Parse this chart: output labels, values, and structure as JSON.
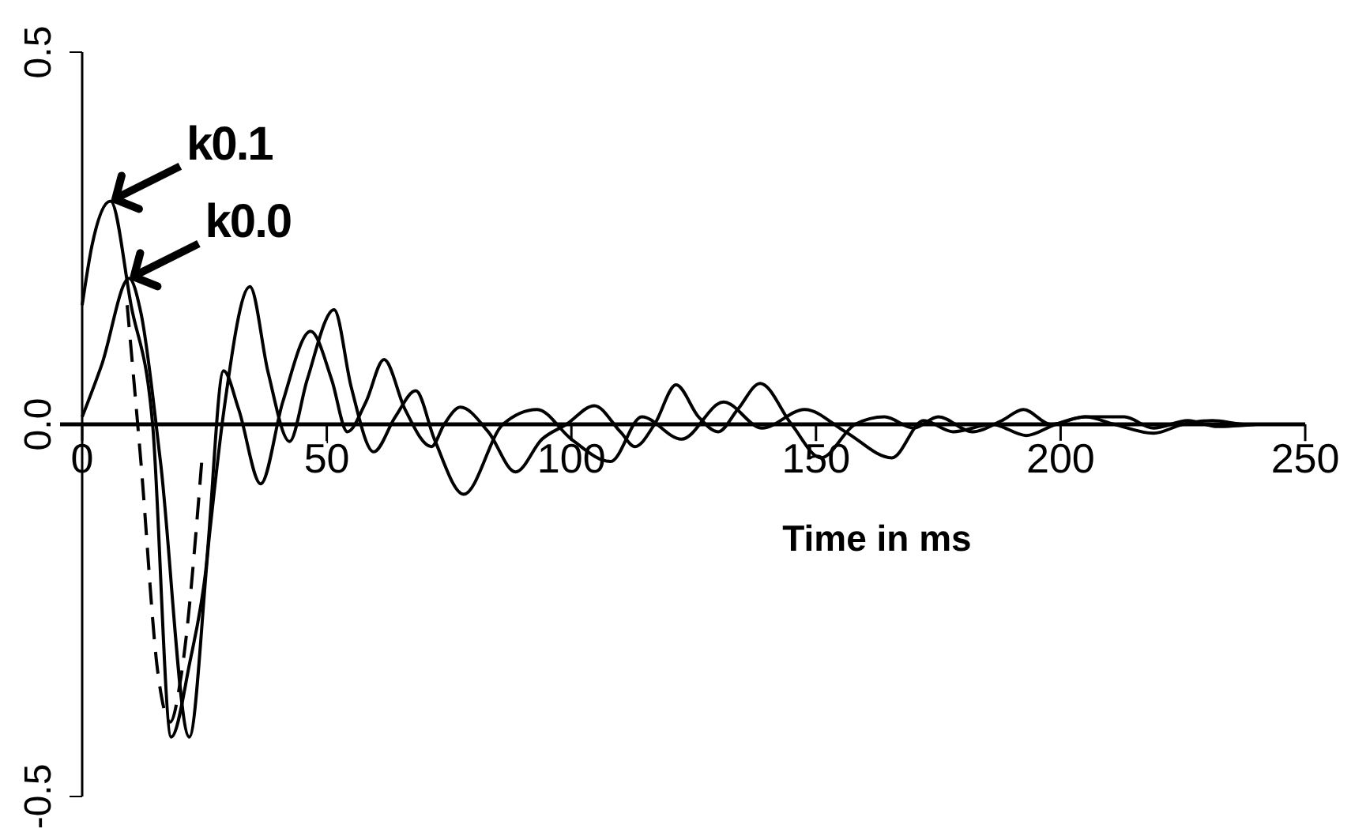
{
  "chart_data": {
    "type": "line",
    "xlabel": "Time in ms",
    "xlim": [
      0,
      250
    ],
    "xticks": [
      0,
      50,
      100,
      150,
      200,
      250
    ],
    "ylim": [
      -0.5,
      0.5
    ],
    "yticks": [
      -0.5,
      {
        "value": 0,
        "label": "0.0"
      },
      0.5
    ],
    "grid": false,
    "marker": "none",
    "series": [
      {
        "color": "#000000",
        "line_style": "solid",
        "x": [
          0,
          2,
          5.8,
          10,
          14.4,
          18.2,
          22,
          25.2,
          28.9,
          32,
          36.5,
          41,
          46.7,
          51,
          54.2,
          58,
          61.7,
          66,
          71.4,
          74,
          77.3,
          83,
          88.6,
          94,
          99,
          104.7,
          110,
          113,
          117,
          121.4,
          126,
          130,
          134,
          138.6,
          145,
          151,
          158,
          164,
          170,
          175,
          182,
          188,
          192.4,
          198,
          205,
          211,
          219,
          225,
          231,
          238,
          245
        ],
        "values": [
          0.16,
          0.24,
          0.3,
          0.16,
          0,
          -0.42,
          -0.32,
          -0.2,
          0.072,
          0.02,
          -0.08,
          0.03,
          0.125,
          0.06,
          -0.01,
          0.03,
          0.087,
          0.02,
          -0.03,
          0,
          0.023,
          -0.01,
          -0.064,
          -0.02,
          0,
          0.025,
          -0.01,
          -0.03,
          0,
          0.053,
          0.01,
          -0.01,
          0.02,
          0.055,
          0,
          -0.045,
          0,
          0.01,
          -0.005,
          0.01,
          -0.01,
          0.005,
          0.02,
          0,
          0.01,
          0,
          -0.012,
          0,
          0.005,
          0,
          0
        ]
      },
      {
        "color": "#000000",
        "line_style": "solid",
        "x": [
          0,
          4,
          9.6,
          12,
          16,
          21.9,
          26,
          29,
          34.3,
          38,
          42.4,
          46,
          51.5,
          55,
          59.6,
          64,
          68.2,
          72,
          78,
          86,
          93,
          100,
          108,
          114.4,
          122.5,
          131.1,
          139,
          147.7,
          156,
          165.5,
          172,
          178,
          186,
          193,
          199,
          205,
          213,
          219,
          226,
          232,
          240
        ],
        "values": [
          0.01,
          0.08,
          0.196,
          0.15,
          -0.05,
          -0.42,
          -0.15,
          0.02,
          0.185,
          0.07,
          -0.023,
          0.06,
          0.154,
          0.05,
          -0.037,
          0.01,
          0.045,
          -0.02,
          -0.094,
          0,
          0.02,
          -0.02,
          -0.05,
          0.01,
          -0.02,
          0.03,
          -0.005,
          0.02,
          -0.01,
          -0.045,
          0.005,
          -0.01,
          0,
          -0.015,
          0,
          0.01,
          0.01,
          -0.005,
          0.005,
          -0.003,
          0
        ]
      },
      {
        "color": "#000000",
        "line_style": "dashed",
        "x": [
          9.2,
          12,
          15.5,
          18,
          20.3,
          24.5
        ],
        "values": [
          0.16,
          -0.05,
          -0.335,
          -0.4,
          -0.335,
          -0.045
        ]
      }
    ],
    "annotations": [
      {
        "text": "k0.1",
        "x": 5.8,
        "y": 0.3
      },
      {
        "text": "k0.0",
        "x": 9.6,
        "y": 0.196
      }
    ]
  }
}
